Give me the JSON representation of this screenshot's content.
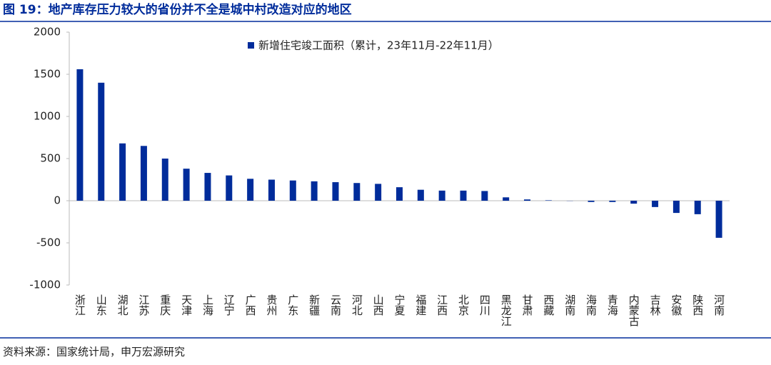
{
  "header": {
    "title": "图 19：地产库存压力较大的省份并不全是城中村改造对应的地区"
  },
  "chart_data": {
    "type": "bar",
    "categories": [
      "浙江",
      "山东",
      "湖北",
      "江苏",
      "重庆",
      "天津",
      "上海",
      "辽宁",
      "广西",
      "贵州",
      "广东",
      "新疆",
      "云南",
      "河北",
      "山西",
      "宁夏",
      "福建",
      "江西",
      "北京",
      "四川",
      "黑龙江",
      "甘肃",
      "西藏",
      "湖南",
      "海南",
      "青海",
      "内蒙古",
      "吉林",
      "安徽",
      "陕西",
      "河南"
    ],
    "series": [
      {
        "name": "新增住宅竣工面积（累计，23年11月-22年11月）",
        "color": "#002c9b",
        "values": [
          1560,
          1400,
          680,
          650,
          500,
          380,
          330,
          300,
          260,
          250,
          240,
          230,
          220,
          210,
          200,
          160,
          130,
          120,
          120,
          115,
          40,
          15,
          5,
          -2,
          -15,
          -15,
          -35,
          -75,
          -145,
          -160,
          -440
        ]
      }
    ],
    "ylim": [
      -1000,
      2000
    ],
    "yticks": [
      -1000,
      -500,
      0,
      500,
      1000,
      1500,
      2000
    ],
    "grid": false,
    "legend": "top"
  },
  "footer": {
    "source": "资料来源：国家统计局，申万宏源研究"
  }
}
